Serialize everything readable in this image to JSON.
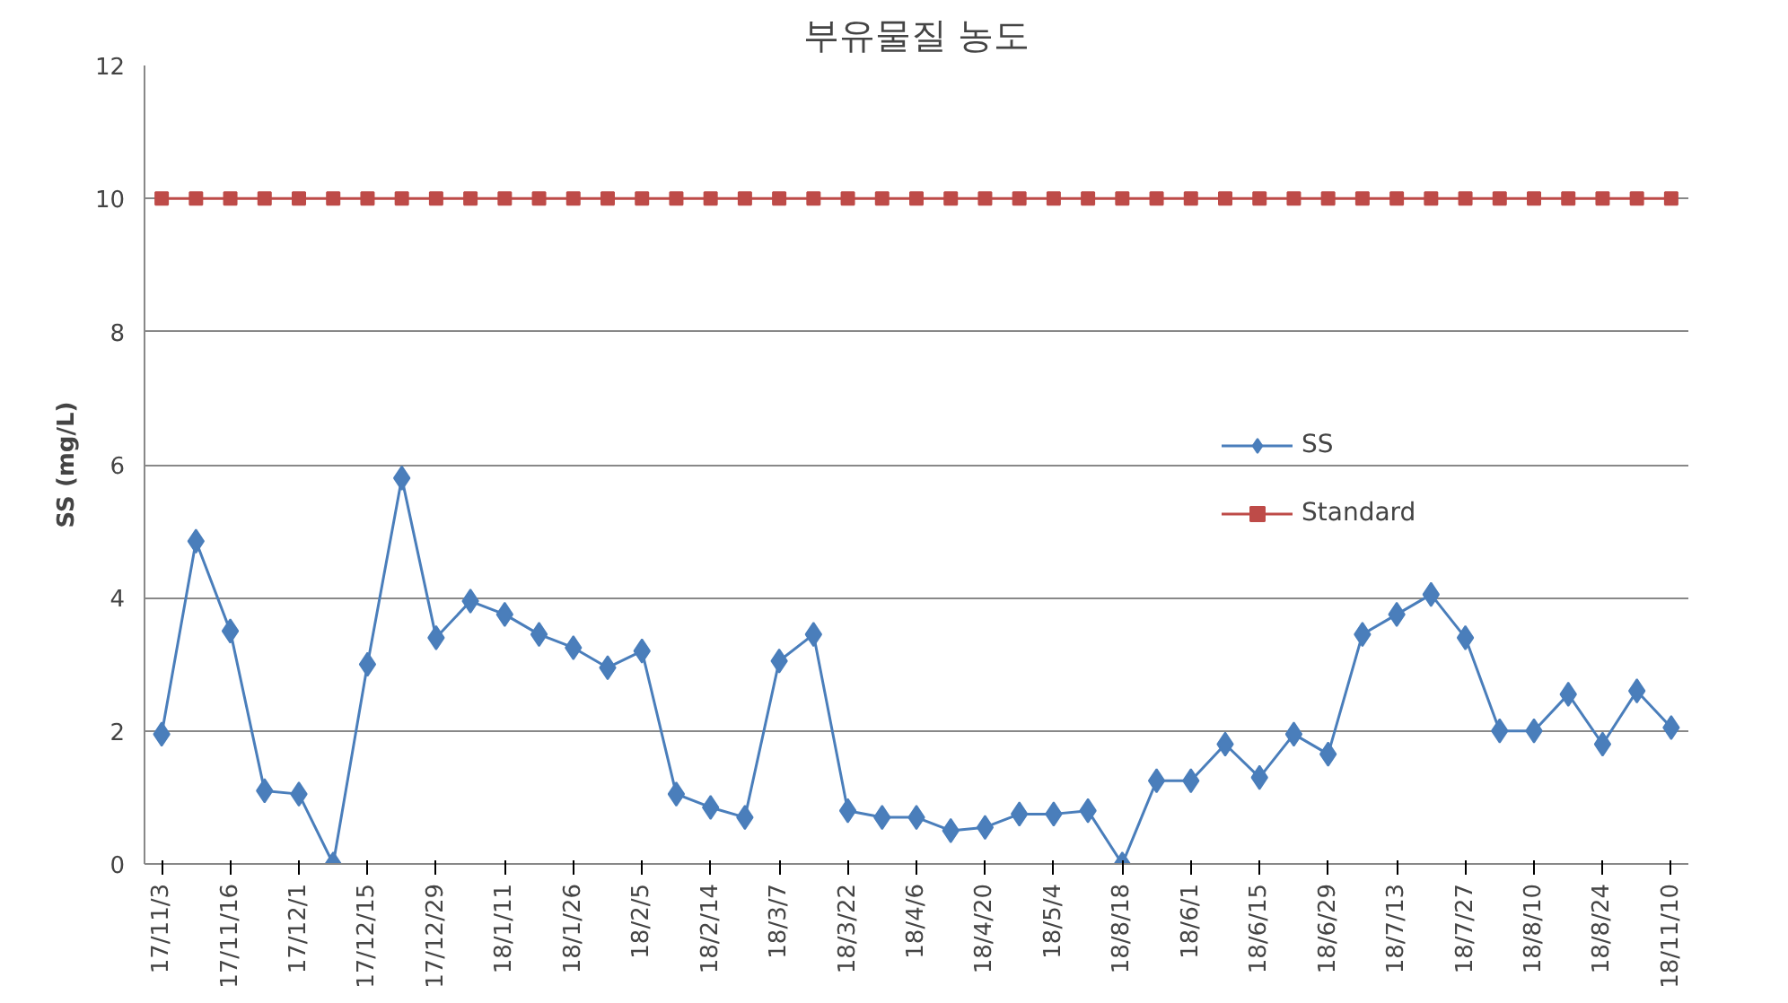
{
  "chart_data": {
    "type": "line",
    "title": "부유물질 농도",
    "ylabel": "SS (mg/L)",
    "categories": [
      "17/11/3",
      null,
      "17/11/16",
      null,
      "17/12/1",
      null,
      "17/12/15",
      null,
      "17/12/29",
      null,
      "18/1/11",
      null,
      "18/1/26",
      null,
      "18/2/5",
      null,
      "18/2/14",
      null,
      "18/3/7",
      null,
      "18/3/22",
      null,
      "18/4/6",
      null,
      "18/4/20",
      null,
      "18/5/4",
      null,
      "18/8/18",
      null,
      "18/6/1",
      null,
      "18/6/15",
      null,
      "18/6/29",
      null,
      "18/7/13",
      null,
      "18/7/27",
      null,
      "18/8/10",
      null,
      "18/8/24",
      null,
      "18/11/10"
    ],
    "series": [
      {
        "name": "SS",
        "color": "#4a7ebb",
        "marker": "diamond",
        "values": [
          1.95,
          4.85,
          3.5,
          1.1,
          1.05,
          0,
          3.0,
          5.8,
          3.4,
          3.95,
          3.75,
          3.45,
          3.25,
          2.95,
          3.2,
          1.05,
          0.85,
          0.7,
          3.05,
          3.45,
          0.8,
          0.7,
          0.7,
          0.5,
          0.55,
          0.75,
          0.75,
          0.8,
          0,
          1.25,
          1.25,
          1.8,
          1.3,
          1.95,
          1.65,
          3.45,
          3.75,
          4.05,
          3.4,
          2.0,
          2.0,
          2.55,
          1.8,
          2.6,
          2.05
        ]
      },
      {
        "name": "Standard",
        "color": "#be4b48",
        "marker": "square",
        "values": [
          10,
          10,
          10,
          10,
          10,
          10,
          10,
          10,
          10,
          10,
          10,
          10,
          10,
          10,
          10,
          10,
          10,
          10,
          10,
          10,
          10,
          10,
          10,
          10,
          10,
          10,
          10,
          10,
          10,
          10,
          10,
          10,
          10,
          10,
          10,
          10,
          10,
          10,
          10,
          10,
          10,
          10,
          10,
          10,
          10
        ]
      }
    ],
    "ylim": [
      0,
      12
    ],
    "yticks": [
      0,
      2,
      4,
      6,
      8,
      10,
      12
    ],
    "grid": "y",
    "legend": "right",
    "line_style": "solid"
  }
}
